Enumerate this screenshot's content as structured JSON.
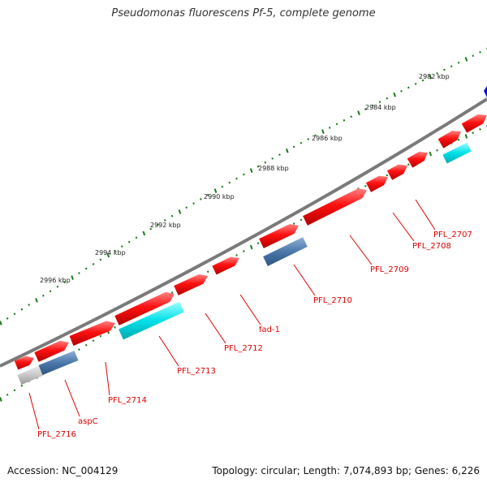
{
  "title": "Pseudomonas fluorescens Pf-5, complete genome",
  "footer": {
    "accession": "Accession: NC_004129",
    "summary": "Topology: circular; Length: 7,074,893 bp; Genes: 6,226"
  },
  "colors": {
    "backbone": "#7a7a7a",
    "gene_red": "#ff1010",
    "gene_blue": "#4a78aa",
    "gene_cyan": "#00e0e8",
    "gene_gray": "#c8c8c8",
    "tick_green": "#1a7a1a",
    "label_red": "#e00000",
    "gene_darkblue": "#1010cc"
  },
  "scale_labels": [
    "2982 kbp",
    "2984 kbp",
    "2986 kbp",
    "2988 kbp",
    "2990 kbp",
    "2992 kbp",
    "2994 kbp",
    "2996 kbp"
  ],
  "gene_labels": [
    "PFL_2707",
    "PFL_2708",
    "PFL_2709",
    "PFL_2710",
    "fad-1",
    "PFL_2712",
    "PFL_2713",
    "PFL_2714",
    "aspC",
    "PFL_2716"
  ]
}
